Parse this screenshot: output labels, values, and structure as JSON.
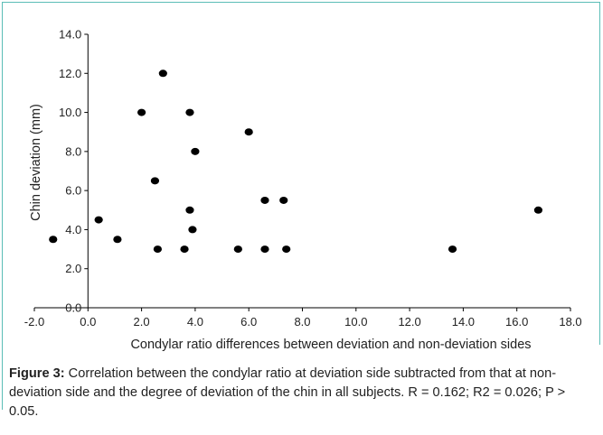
{
  "chart_data": {
    "type": "scatter",
    "xlabel": "Condylar ratio differences between deviation and non-deviation sides",
    "ylabel": "Chin deviation (mm)",
    "xlim": [
      -2.0,
      18.0
    ],
    "ylim": [
      0.0,
      14.0
    ],
    "x_ticks": [
      "-2.0",
      "0.0",
      "2.0",
      "4.0",
      "6.0",
      "8.0",
      "10.0",
      "12.0",
      "14.0",
      "16.0",
      "18.0"
    ],
    "y_ticks": [
      "0.0",
      "2.0",
      "4.0",
      "6.0",
      "8.0",
      "10.0",
      "12.0",
      "14.0"
    ],
    "grid": false,
    "marker_color": "#000000",
    "points": [
      {
        "x": -1.3,
        "y": 3.5
      },
      {
        "x": 0.4,
        "y": 4.5
      },
      {
        "x": 1.1,
        "y": 3.5
      },
      {
        "x": 2.0,
        "y": 10.0
      },
      {
        "x": 2.5,
        "y": 6.5
      },
      {
        "x": 2.6,
        "y": 3.0
      },
      {
        "x": 2.8,
        "y": 12.0
      },
      {
        "x": 3.6,
        "y": 3.0
      },
      {
        "x": 3.8,
        "y": 10.0
      },
      {
        "x": 3.8,
        "y": 5.0
      },
      {
        "x": 3.9,
        "y": 4.0
      },
      {
        "x": 4.0,
        "y": 8.0
      },
      {
        "x": 5.6,
        "y": 3.0
      },
      {
        "x": 6.0,
        "y": 9.0
      },
      {
        "x": 6.6,
        "y": 5.5
      },
      {
        "x": 6.6,
        "y": 3.0
      },
      {
        "x": 7.3,
        "y": 5.5
      },
      {
        "x": 7.4,
        "y": 3.0
      },
      {
        "x": 13.6,
        "y": 3.0
      },
      {
        "x": 16.8,
        "y": 5.0
      }
    ]
  },
  "caption": {
    "label": "Figure 3:",
    "text": " Correlation between the condylar ratio at deviation side subtracted from that at non-deviation side and the degree of deviation of the chin in all subjects. R = 0.162; R2 = 0.026; P > 0.05."
  },
  "colors": {
    "frame_border": "#5bbdb6",
    "axis": "#000000",
    "text": "#222222"
  }
}
